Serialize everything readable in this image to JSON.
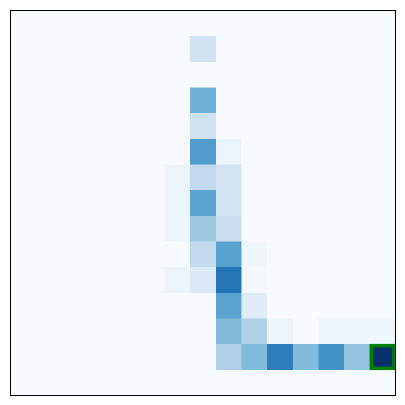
{
  "chart_data": {
    "type": "heatmap",
    "title": "",
    "xlabel": "",
    "ylabel": "",
    "rows": 15,
    "cols": 15,
    "colormap": "Blues",
    "value_range": [
      0,
      1
    ],
    "grid": false,
    "ticks": false,
    "values": [
      [
        0.0,
        0.0,
        0.0,
        0.0,
        0.0,
        0.0,
        0.0,
        0.0,
        0.0,
        0.0,
        0.0,
        0.0,
        0.0,
        0.0,
        0.0
      ],
      [
        0.0,
        0.0,
        0.0,
        0.0,
        0.0,
        0.0,
        0.0,
        0.2,
        0.0,
        0.0,
        0.0,
        0.0,
        0.0,
        0.0,
        0.0
      ],
      [
        0.0,
        0.0,
        0.0,
        0.0,
        0.0,
        0.0,
        0.0,
        0.0,
        0.0,
        0.0,
        0.0,
        0.0,
        0.0,
        0.0,
        0.0
      ],
      [
        0.0,
        0.0,
        0.0,
        0.0,
        0.0,
        0.0,
        0.0,
        0.48,
        0.0,
        0.0,
        0.0,
        0.0,
        0.0,
        0.0,
        0.0
      ],
      [
        0.0,
        0.0,
        0.0,
        0.0,
        0.0,
        0.0,
        0.0,
        0.2,
        0.0,
        0.0,
        0.0,
        0.0,
        0.0,
        0.0,
        0.0
      ],
      [
        0.0,
        0.0,
        0.0,
        0.0,
        0.0,
        0.0,
        0.0,
        0.58,
        0.05,
        0.0,
        0.0,
        0.0,
        0.0,
        0.0,
        0.0
      ],
      [
        0.0,
        0.0,
        0.0,
        0.0,
        0.0,
        0.0,
        0.05,
        0.26,
        0.18,
        0.0,
        0.0,
        0.0,
        0.0,
        0.0,
        0.0
      ],
      [
        0.0,
        0.0,
        0.0,
        0.0,
        0.0,
        0.0,
        0.05,
        0.55,
        0.18,
        0.0,
        0.0,
        0.0,
        0.0,
        0.0,
        0.0
      ],
      [
        0.0,
        0.0,
        0.0,
        0.0,
        0.0,
        0.0,
        0.05,
        0.38,
        0.22,
        0.0,
        0.0,
        0.0,
        0.0,
        0.0,
        0.0
      ],
      [
        0.0,
        0.0,
        0.0,
        0.0,
        0.0,
        0.0,
        0.0,
        0.26,
        0.56,
        0.04,
        0.0,
        0.0,
        0.0,
        0.0,
        0.0
      ],
      [
        0.0,
        0.0,
        0.0,
        0.0,
        0.0,
        0.0,
        0.05,
        0.14,
        0.74,
        0.02,
        0.0,
        0.0,
        0.0,
        0.0,
        0.0
      ],
      [
        0.0,
        0.0,
        0.0,
        0.0,
        0.0,
        0.0,
        0.0,
        0.0,
        0.55,
        0.12,
        0.0,
        0.0,
        0.0,
        0.0,
        0.0
      ],
      [
        0.0,
        0.0,
        0.0,
        0.0,
        0.0,
        0.0,
        0.0,
        0.0,
        0.44,
        0.32,
        0.05,
        0.0,
        0.04,
        0.04,
        0.04
      ],
      [
        0.0,
        0.0,
        0.0,
        0.0,
        0.0,
        0.0,
        0.0,
        0.0,
        0.32,
        0.44,
        0.7,
        0.44,
        0.62,
        0.4,
        1.0
      ],
      [
        0.0,
        0.0,
        0.0,
        0.0,
        0.0,
        0.0,
        0.0,
        0.0,
        0.0,
        0.0,
        0.0,
        0.0,
        0.0,
        0.0,
        0.0
      ]
    ],
    "highlight": {
      "row": 13,
      "col": 14,
      "color": "#008000"
    },
    "frame_color": "#000000"
  }
}
